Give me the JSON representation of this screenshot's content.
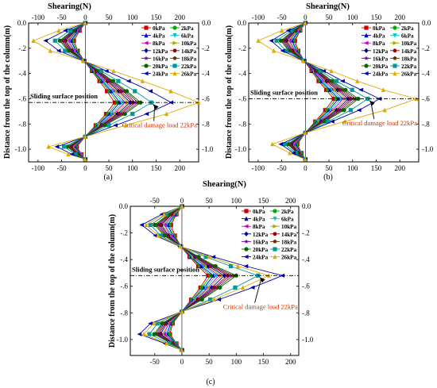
{
  "figure": {
    "panel_labels": [
      "(a)",
      "(b)",
      "(c)"
    ],
    "xlabel": "Shearing(N)",
    "ylabel": "Distance from the top of the column(m)",
    "sliding_label": "Sliding surface position",
    "critical_label": "Critical damage load 22kPa",
    "colors": {
      "sliding_line": "#000000",
      "critical_text": "#cc3300",
      "arrow": "#000000"
    }
  },
  "chart_data": [
    {
      "type": "line",
      "panel": "(a)",
      "xlabel": "Shearing(N)",
      "ylabel": "Distance from the top of the column(m)",
      "xlim": [
        -120,
        240
      ],
      "ylim": [
        0.0,
        -1.1
      ],
      "bottom_ticks": [
        -100,
        -50,
        0,
        50,
        100,
        150,
        200
      ],
      "top_ticks": [
        -100,
        -50,
        0,
        50,
        100,
        150,
        200
      ],
      "left_ticks": [
        0.0,
        -0.2,
        -0.4,
        -0.6,
        -0.8,
        -1.0
      ],
      "right_ticks": [
        0.0,
        -0.2,
        -0.4,
        -0.6,
        -0.8,
        -1.0
      ],
      "sliding_depth": -0.63,
      "grid": false,
      "legend_position": "top-right",
      "depths": [
        0.0,
        -0.06,
        -0.14,
        -0.22,
        -0.3,
        -0.38,
        -0.46,
        -0.54,
        -0.63,
        -0.72,
        -0.81,
        -0.9,
        -0.98,
        -1.04,
        -1.08
      ],
      "series": [
        {
          "name": "0kPa",
          "color": "#cc0000",
          "marker": "square",
          "values": [
            0,
            -12,
            -24,
            -16,
            -2,
            14,
            30,
            46,
            62,
            44,
            22,
            0,
            -18,
            -8,
            0
          ]
        },
        {
          "name": "2kPa",
          "color": "#00aa00",
          "marker": "circle",
          "values": [
            0,
            -14,
            -27,
            -18,
            -2,
            16,
            33,
            51,
            68,
            48,
            24,
            0,
            -20,
            -9,
            0
          ]
        },
        {
          "name": "4kPa",
          "color": "#0000cc",
          "marker": "triangle-up",
          "values": [
            0,
            -15,
            -30,
            -20,
            -2,
            17,
            36,
            55,
            73,
            52,
            26,
            0,
            -22,
            -10,
            0
          ]
        },
        {
          "name": "6kPa",
          "color": "#00cccc",
          "marker": "triangle-down",
          "values": [
            0,
            -17,
            -33,
            -22,
            -2,
            19,
            39,
            59,
            79,
            56,
            28,
            0,
            -24,
            -11,
            0
          ]
        },
        {
          "name": "8kPa",
          "color": "#cc00cc",
          "marker": "triangle-left",
          "values": [
            0,
            -18,
            -36,
            -24,
            -2,
            20,
            42,
            63,
            84,
            60,
            30,
            0,
            -26,
            -12,
            0
          ]
        },
        {
          "name": "10kPa",
          "color": "#aaaa00",
          "marker": "triangle-right",
          "values": [
            0,
            -20,
            -39,
            -26,
            -2,
            22,
            45,
            67,
            90,
            64,
            32,
            0,
            -28,
            -13,
            0
          ]
        },
        {
          "name": "12kPa",
          "color": "#000099",
          "marker": "diamond",
          "values": [
            0,
            -21,
            -42,
            -28,
            -2,
            23,
            47,
            71,
            95,
            68,
            34,
            0,
            -30,
            -14,
            0
          ]
        },
        {
          "name": "14kPa",
          "color": "#990000",
          "marker": "hexagon",
          "values": [
            0,
            -23,
            -45,
            -30,
            -2,
            25,
            50,
            75,
            101,
            72,
            36,
            0,
            -32,
            -15,
            0
          ]
        },
        {
          "name": "16kPa",
          "color": "#660099",
          "marker": "star",
          "values": [
            0,
            -24,
            -48,
            -32,
            -2,
            26,
            53,
            80,
            106,
            76,
            38,
            0,
            -34,
            -16,
            0
          ]
        },
        {
          "name": "18kPa",
          "color": "#663300",
          "marker": "pentagon",
          "values": [
            0,
            -26,
            -51,
            -34,
            -2,
            28,
            56,
            84,
            112,
            80,
            40,
            0,
            -36,
            -17,
            0
          ]
        },
        {
          "name": "20kPa",
          "color": "#006600",
          "marker": "circle",
          "values": [
            0,
            -27,
            -54,
            -36,
            -2,
            29,
            59,
            88,
            117,
            84,
            42,
            0,
            -38,
            -18,
            0
          ]
        },
        {
          "name": "22kPa",
          "color": "#009999",
          "marker": "square",
          "values": [
            0,
            -32,
            -64,
            -43,
            -3,
            34,
            70,
            105,
            140,
            100,
            50,
            0,
            -45,
            -21,
            0
          ]
        },
        {
          "name": "24kPa",
          "color": "#0000aa",
          "marker": "triangle-left",
          "values": [
            0,
            -42,
            -84,
            -56,
            -4,
            45,
            92,
            138,
            182,
            130,
            64,
            0,
            -60,
            -28,
            0
          ]
        },
        {
          "name": "26kPa",
          "color": "#ddaa00",
          "marker": "triangle-up",
          "values": [
            0,
            -56,
            -110,
            -74,
            -5,
            60,
            121,
            181,
            240,
            172,
            86,
            0,
            -78,
            -36,
            0
          ]
        }
      ]
    },
    {
      "type": "line",
      "panel": "(b)",
      "xlabel": "Shearing(N)",
      "ylabel": "Distance from the top of the column(m)",
      "xlim": [
        -120,
        240
      ],
      "ylim": [
        0.0,
        -1.1
      ],
      "bottom_ticks": [
        -100,
        -50,
        0,
        50,
        100,
        150,
        200
      ],
      "top_ticks": [
        -100,
        -50,
        0,
        50,
        100,
        150,
        200
      ],
      "left_ticks": [
        0.0,
        -0.2,
        -0.4,
        -0.6,
        -0.8,
        -1.0
      ],
      "right_ticks": [
        0.0,
        -0.2,
        -0.4,
        -0.6,
        -0.8,
        -1.0
      ],
      "sliding_depth": -0.6,
      "grid": false,
      "legend_position": "top-right",
      "depths": [
        0.0,
        -0.06,
        -0.14,
        -0.22,
        -0.3,
        -0.38,
        -0.46,
        -0.53,
        -0.6,
        -0.69,
        -0.78,
        -0.87,
        -0.96,
        -1.03,
        -1.08
      ],
      "series": [
        {
          "name": "0kPa",
          "color": "#cc0000",
          "marker": "square",
          "values": [
            0,
            -11,
            -22,
            -15,
            -2,
            13,
            28,
            44,
            60,
            42,
            21,
            0,
            -17,
            -8,
            0
          ]
        },
        {
          "name": "2kPa",
          "color": "#00aa00",
          "marker": "circle",
          "values": [
            0,
            -12,
            -25,
            -17,
            -2,
            15,
            31,
            48,
            65,
            46,
            23,
            0,
            -19,
            -9,
            0
          ]
        },
        {
          "name": "4kPa",
          "color": "#0000cc",
          "marker": "triangle-up",
          "values": [
            0,
            -14,
            -28,
            -19,
            -2,
            16,
            34,
            52,
            70,
            50,
            25,
            0,
            -21,
            -10,
            0
          ]
        },
        {
          "name": "6kPa",
          "color": "#00cccc",
          "marker": "triangle-down",
          "values": [
            0,
            -15,
            -31,
            -21,
            -2,
            18,
            37,
            56,
            75,
            54,
            27,
            0,
            -23,
            -11,
            0
          ]
        },
        {
          "name": "8kPa",
          "color": "#cc00cc",
          "marker": "triangle-left",
          "values": [
            0,
            -17,
            -34,
            -23,
            -2,
            19,
            40,
            60,
            80,
            58,
            29,
            0,
            -25,
            -12,
            0
          ]
        },
        {
          "name": "10kPa",
          "color": "#aaaa00",
          "marker": "triangle-right",
          "values": [
            0,
            -18,
            -37,
            -25,
            -2,
            21,
            43,
            64,
            86,
            62,
            31,
            0,
            -27,
            -13,
            0
          ]
        },
        {
          "name": "12kPa",
          "color": "#000099",
          "marker": "diamond",
          "values": [
            0,
            -20,
            -40,
            -27,
            -2,
            22,
            45,
            68,
            91,
            66,
            33,
            0,
            -29,
            -14,
            0
          ]
        },
        {
          "name": "14kPa",
          "color": "#990000",
          "marker": "hexagon",
          "values": [
            0,
            -21,
            -43,
            -29,
            -2,
            24,
            48,
            72,
            96,
            70,
            35,
            0,
            -31,
            -15,
            0
          ]
        },
        {
          "name": "16kPa",
          "color": "#660099",
          "marker": "star",
          "values": [
            0,
            -23,
            -46,
            -31,
            -2,
            25,
            51,
            76,
            101,
            74,
            37,
            0,
            -33,
            -16,
            0
          ]
        },
        {
          "name": "18kPa",
          "color": "#663300",
          "marker": "pentagon",
          "values": [
            0,
            -24,
            -49,
            -33,
            -2,
            27,
            54,
            80,
            107,
            78,
            39,
            0,
            -35,
            -17,
            0
          ]
        },
        {
          "name": "20kPa",
          "color": "#006600",
          "marker": "circle",
          "values": [
            0,
            -26,
            -52,
            -35,
            -2,
            28,
            57,
            85,
            112,
            82,
            41,
            0,
            -37,
            -18,
            0
          ]
        },
        {
          "name": "22kPa",
          "color": "#009999",
          "marker": "square",
          "values": [
            0,
            -30,
            -61,
            -41,
            -3,
            32,
            66,
            99,
            132,
            96,
            48,
            0,
            -44,
            -21,
            0
          ]
        },
        {
          "name": "24kPa",
          "color": "#0000aa",
          "marker": "triangle-left",
          "values": [
            0,
            -36,
            -72,
            -48,
            -4,
            39,
            79,
            118,
            157,
            114,
            57,
            0,
            -52,
            -25,
            0
          ]
        },
        {
          "name": "26kPa",
          "color": "#ddaa00",
          "marker": "triangle-up",
          "values": [
            0,
            -50,
            -100,
            -67,
            -5,
            55,
            110,
            165,
            235,
            168,
            84,
            0,
            -70,
            -33,
            0
          ]
        }
      ]
    },
    {
      "type": "line",
      "panel": "(c)",
      "xlabel": "Shearing(N)",
      "ylabel": "Distance from the top of the column(m)",
      "xlim": [
        -95,
        215
      ],
      "ylim": [
        0.0,
        -1.12
      ],
      "bottom_ticks": [
        -50,
        0,
        50,
        100,
        150,
        200
      ],
      "top_ticks": [
        -50,
        0,
        50,
        100,
        150,
        200
      ],
      "left_ticks": [
        0.0,
        -0.2,
        -0.4,
        -0.6,
        -0.8,
        -1.0
      ],
      "right_ticks": [
        0.0,
        -0.2,
        -0.4,
        -0.6,
        -0.8,
        -1.0
      ],
      "sliding_depth": -0.52,
      "grid": false,
      "legend_position": "top-right",
      "depths": [
        0.0,
        -0.06,
        -0.14,
        -0.22,
        -0.3,
        -0.38,
        -0.45,
        -0.52,
        -0.61,
        -0.7,
        -0.79,
        -0.88,
        -0.96,
        -1.03,
        -1.08
      ],
      "series": [
        {
          "name": "0kPa",
          "color": "#cc0000",
          "marker": "square",
          "values": [
            0,
            -10,
            -20,
            -13,
            -2,
            14,
            30,
            48,
            34,
            17,
            0,
            -17,
            -22,
            -10,
            0
          ]
        },
        {
          "name": "2kPa",
          "color": "#00aa00",
          "marker": "circle",
          "values": [
            0,
            -11,
            -23,
            -15,
            -2,
            16,
            33,
            53,
            37,
            19,
            0,
            -19,
            -24,
            -11,
            0
          ]
        },
        {
          "name": "4kPa",
          "color": "#0000cc",
          "marker": "triangle-up",
          "values": [
            0,
            -13,
            -26,
            -17,
            -2,
            17,
            36,
            58,
            41,
            21,
            0,
            -21,
            -27,
            -12,
            0
          ]
        },
        {
          "name": "6kPa",
          "color": "#00cccc",
          "marker": "triangle-down",
          "values": [
            0,
            -14,
            -29,
            -19,
            -2,
            19,
            40,
            63,
            44,
            23,
            0,
            -23,
            -30,
            -13,
            0
          ]
        },
        {
          "name": "8kPa",
          "color": "#cc00cc",
          "marker": "triangle-left",
          "values": [
            0,
            -16,
            -32,
            -21,
            -2,
            21,
            43,
            68,
            48,
            25,
            0,
            -25,
            -33,
            -14,
            0
          ]
        },
        {
          "name": "10kPa",
          "color": "#aaaa00",
          "marker": "triangle-right",
          "values": [
            0,
            -17,
            -35,
            -23,
            -2,
            22,
            46,
            73,
            51,
            27,
            0,
            -27,
            -36,
            -15,
            0
          ]
        },
        {
          "name": "12kPa",
          "color": "#000099",
          "marker": "diamond",
          "values": [
            0,
            -19,
            -38,
            -25,
            -2,
            24,
            49,
            78,
            55,
            29,
            0,
            -29,
            -39,
            -16,
            0
          ]
        },
        {
          "name": "14kPa",
          "color": "#990000",
          "marker": "hexagon",
          "values": [
            0,
            -20,
            -41,
            -27,
            -2,
            26,
            53,
            84,
            59,
            31,
            0,
            -31,
            -42,
            -17,
            0
          ]
        },
        {
          "name": "16kPa",
          "color": "#660099",
          "marker": "star",
          "values": [
            0,
            -22,
            -44,
            -29,
            -2,
            27,
            56,
            89,
            62,
            33,
            0,
            -33,
            -45,
            -18,
            0
          ]
        },
        {
          "name": "18kPa",
          "color": "#663300",
          "marker": "pentagon",
          "values": [
            0,
            -23,
            -47,
            -31,
            -2,
            29,
            59,
            94,
            66,
            35,
            0,
            -35,
            -48,
            -19,
            0
          ]
        },
        {
          "name": "20kPa",
          "color": "#006600",
          "marker": "circle",
          "values": [
            0,
            -25,
            -50,
            -33,
            -2,
            31,
            62,
            100,
            70,
            37,
            0,
            -37,
            -51,
            -20,
            0
          ]
        },
        {
          "name": "22kPa",
          "color": "#009999",
          "marker": "square",
          "values": [
            0,
            -29,
            -58,
            -39,
            -3,
            44,
            90,
            140,
            98,
            52,
            0,
            -45,
            -60,
            -24,
            0
          ]
        },
        {
          "name": "24kPa",
          "color": "#0000aa",
          "marker": "triangle-left",
          "values": [
            0,
            -37,
            -74,
            -49,
            -4,
            58,
            118,
            185,
            130,
            68,
            0,
            -58,
            -78,
            -31,
            0
          ]
        },
        {
          "name": "26kPa",
          "color": "#ddaa00",
          "marker": "triangle-up",
          "values": [
            0,
            -33,
            -66,
            -44,
            -3,
            50,
            103,
            160,
            112,
            59,
            0,
            -52,
            -70,
            -28,
            0
          ]
        }
      ]
    }
  ]
}
